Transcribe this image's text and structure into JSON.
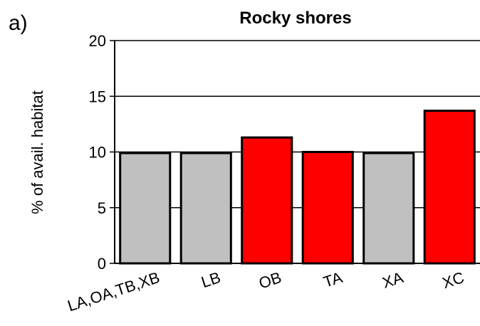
{
  "panel_label": "a)",
  "chart_data": {
    "type": "bar",
    "title": "Rocky shores",
    "xlabel": "",
    "ylabel": "% of avail. habitat",
    "ylim": [
      0,
      20
    ],
    "yticks": [
      0,
      5,
      10,
      15,
      20
    ],
    "grid": "horizontal",
    "categories": [
      "LA,OA,TB,XB",
      "LB",
      "OB",
      "TA",
      "XA",
      "XC"
    ],
    "values": [
      9.9,
      9.9,
      11.3,
      10.0,
      9.9,
      13.7
    ],
    "colors": [
      "#c0c0c0",
      "#c0c0c0",
      "#ff0000",
      "#ff0000",
      "#c0c0c0",
      "#ff0000"
    ]
  }
}
